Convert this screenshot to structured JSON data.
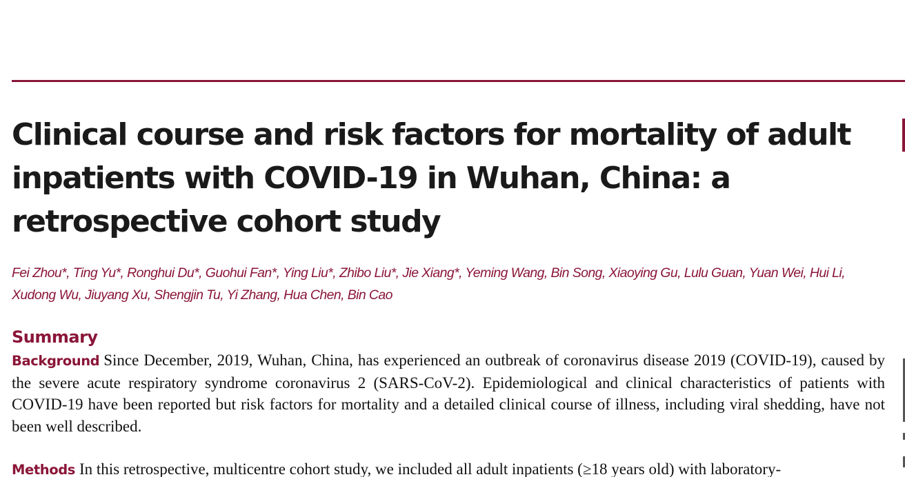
{
  "colors": {
    "accent": "#8a1538",
    "text": "#111111"
  },
  "article": {
    "title": "Clinical course and risk factors for mortality of adult inpatients with COVID-19 in Wuhan, China: a retrospective cohort study",
    "authors": "Fei Zhou*, Ting Yu*, Ronghui Du*, Guohui Fan*, Ying Liu*, Zhibo Liu*, Jie Xiang*, Yeming Wang, Bin Song, Xiaoying Gu, Lulu Guan, Yuan Wei, Hui Li, Xudong Wu, Jiuyang Xu, Shengjin Tu, Yi Zhang, Hua Chen, Bin Cao"
  },
  "summary": {
    "heading": "Summary",
    "background": {
      "label": "Background",
      "text": "Since December, 2019, Wuhan, China, has experienced an outbreak of coronavirus disease 2019 (COVID-19), caused by the severe acute respiratory syndrome coronavirus 2 (SARS-CoV-2). Epidemiological and clinical characteristics of patients with COVID-19 have been reported but risk factors for mortality and a detailed clinical course of illness, including viral shedding, have not been well described."
    },
    "methods": {
      "label": "Methods",
      "text": "In this retrospective, multicentre cohort study, we included all adult inpatients (≥18 years old) with laboratory-"
    }
  }
}
